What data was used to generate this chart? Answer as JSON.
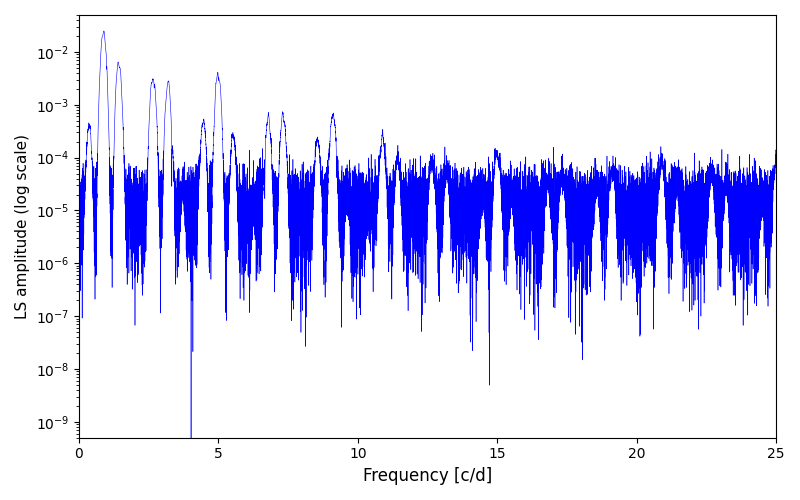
{
  "title": "",
  "xlabel": "Frequency [c/d]",
  "ylabel": "LS amplitude (log scale)",
  "xlim": [
    0,
    25
  ],
  "ylim": [
    5e-10,
    0.05
  ],
  "yscale": "log",
  "line_color": "#0000ff",
  "line_width": 0.4,
  "background_color": "#ffffff",
  "n_points": 15000,
  "freq_max": 25.0,
  "seed": 42,
  "peak_amplitude": 0.025,
  "noise_floor": 5e-05,
  "decay_rate": 0.45
}
